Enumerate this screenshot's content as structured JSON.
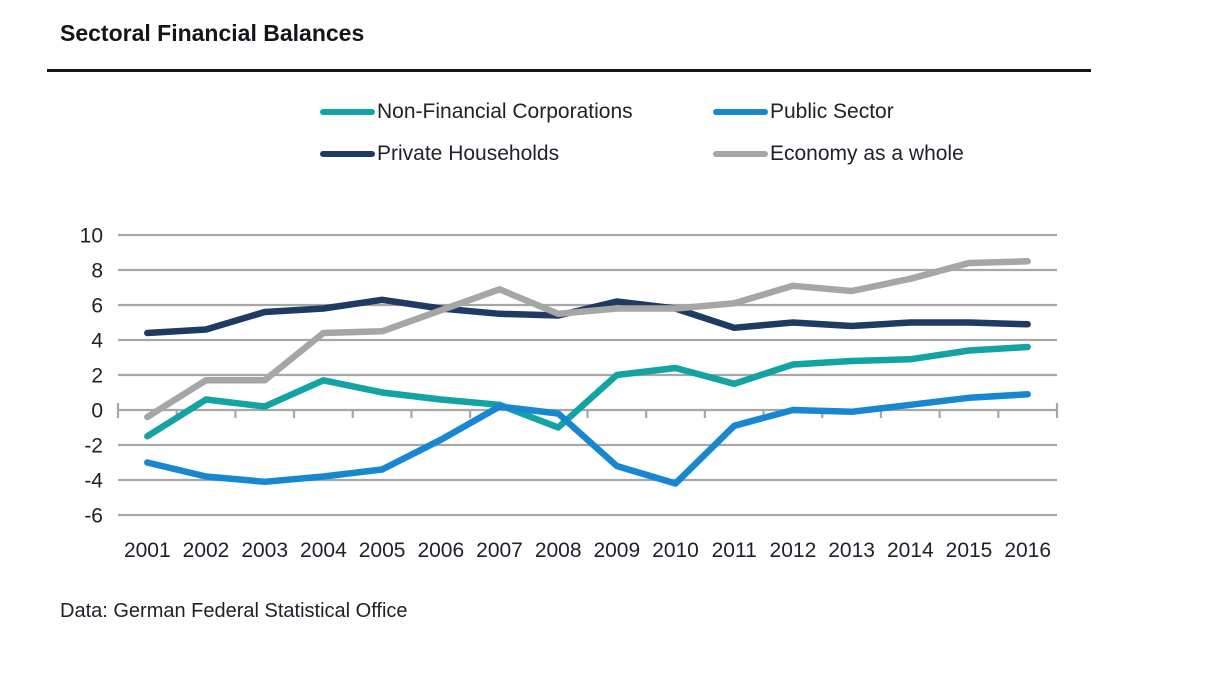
{
  "page": {
    "title": "Sectoral Financial Balances",
    "source_note": "Data: German Federal Statistical Office"
  },
  "legend": {
    "items": [
      {
        "label": "Non-Financial Corporations",
        "color": "#14A3A3"
      },
      {
        "label": "Public Sector",
        "color": "#1787D2"
      },
      {
        "label": "Private Households",
        "color": "#1F3B63"
      },
      {
        "label": "Economy as a whole",
        "color": "#A6A6A6"
      }
    ]
  },
  "chart_data": {
    "type": "line",
    "title": "Sectoral Financial Balances",
    "x": [
      "2001",
      "2002",
      "2003",
      "2004",
      "2005",
      "2006",
      "2007",
      "2008",
      "2009",
      "2010",
      "2011",
      "2012",
      "2013",
      "2014",
      "2015",
      "2016"
    ],
    "series": [
      {
        "name": "Non-Financial Corporations",
        "color": "#14A3A3",
        "values": [
          -1.5,
          0.6,
          0.2,
          1.7,
          1.0,
          0.6,
          0.3,
          -1.0,
          2.0,
          2.4,
          1.5,
          2.6,
          2.8,
          2.9,
          3.4,
          3.6
        ]
      },
      {
        "name": "Public Sector",
        "color": "#1787D2",
        "values": [
          -3.0,
          -3.8,
          -4.1,
          -3.8,
          -3.4,
          -1.7,
          0.2,
          -0.2,
          -3.2,
          -4.2,
          -0.9,
          0.0,
          -0.1,
          0.3,
          0.7,
          0.9
        ]
      },
      {
        "name": "Private Households",
        "color": "#1F3B63",
        "values": [
          4.4,
          4.6,
          5.6,
          5.8,
          6.3,
          5.8,
          5.5,
          5.4,
          6.2,
          5.8,
          4.7,
          5.0,
          4.8,
          5.0,
          5.0,
          4.9
        ]
      },
      {
        "name": "Economy as a whole",
        "color": "#A6A6A6",
        "values": [
          -0.4,
          1.7,
          1.7,
          4.4,
          4.5,
          5.7,
          6.9,
          5.5,
          5.8,
          5.8,
          6.1,
          7.1,
          6.8,
          7.5,
          8.4,
          8.5
        ]
      }
    ],
    "ylim": [
      -6,
      10
    ],
    "ytick_step": 2,
    "yticks": [
      10,
      8,
      6,
      4,
      2,
      0,
      -2,
      -4,
      -6
    ],
    "grid": true,
    "legend_position": "top",
    "xlabel": "",
    "ylabel": "",
    "source": "Data: German Federal Statistical Office"
  }
}
